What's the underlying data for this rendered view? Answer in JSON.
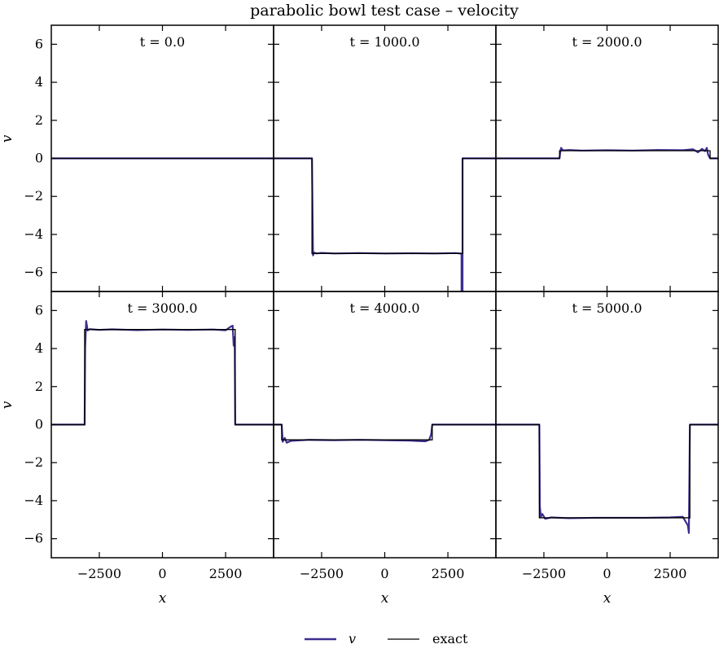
{
  "chart_data": {
    "type": "line",
    "title": "parabolic bowl test case – velocity",
    "xlabel": "x",
    "ylabel": "v",
    "xlim": [
      -4400,
      4400
    ],
    "ylim": [
      -7,
      7
    ],
    "xticks": [
      -2500,
      0,
      2500
    ],
    "xtick_labels": [
      "−2500",
      "0",
      "2500"
    ],
    "yticks": [
      -6,
      -4,
      -2,
      0,
      2,
      4,
      6
    ],
    "ytick_labels": [
      "−6",
      "−4",
      "−2",
      "0",
      "2",
      "4",
      "6"
    ],
    "legend": {
      "position": "bottom-center",
      "entries": [
        {
          "label": "v",
          "color": "#3a2e8f",
          "width": 2.2
        },
        {
          "label": "exact",
          "color": "#000000",
          "width": 1.3
        }
      ]
    },
    "panels": [
      {
        "label": "t = 0.0",
        "exact": {
          "x": [
            -4400,
            4400
          ],
          "y": [
            0,
            0
          ]
        },
        "v": {
          "x": [
            -4400,
            4400
          ],
          "y": [
            0,
            0
          ]
        }
      },
      {
        "label": "t = 1000.0",
        "exact": {
          "x": [
            -4400,
            -2880,
            -2880,
            3080,
            3080,
            4400
          ],
          "y": [
            0,
            0,
            -5,
            -5,
            0,
            0
          ]
        },
        "v": {
          "x": [
            -4400,
            -2880,
            -2840,
            -2800,
            -2700,
            -2500,
            -2000,
            -1000,
            0,
            1000,
            2000,
            2800,
            3000,
            3040,
            3040,
            3080,
            3080,
            4400
          ],
          "y": [
            0,
            0,
            -5.1,
            -4.95,
            -5.0,
            -4.97,
            -5.0,
            -4.98,
            -5.0,
            -4.99,
            -5.0,
            -4.98,
            -5.0,
            -5.05,
            -7.2,
            -7.2,
            0,
            0
          ]
        }
      },
      {
        "label": "t = 2000.0",
        "exact": {
          "x": [
            -4400,
            -1880,
            -1880,
            4080,
            4080,
            4400
          ],
          "y": [
            0,
            0,
            0.4,
            0.4,
            0,
            0
          ]
        },
        "v": {
          "x": [
            -4400,
            -1880,
            -1860,
            -1820,
            -1740,
            -1500,
            -1000,
            0,
            1000,
            2000,
            3000,
            3400,
            3600,
            3760,
            3880,
            3950,
            4000,
            4080,
            4400
          ],
          "y": [
            0,
            0,
            0.25,
            0.55,
            0.42,
            0.44,
            0.41,
            0.43,
            0.41,
            0.44,
            0.43,
            0.48,
            0.32,
            0.5,
            0.38,
            0.55,
            0.2,
            0,
            0
          ]
        }
      },
      {
        "label": "t = 3000.0",
        "exact": {
          "x": [
            -4400,
            -3080,
            -3080,
            2880,
            2880,
            4400
          ],
          "y": [
            0,
            0,
            5,
            5,
            0,
            0
          ]
        },
        "v": {
          "x": [
            -4400,
            -3080,
            -3060,
            -3020,
            -2960,
            -2880,
            -2500,
            -2000,
            -1000,
            0,
            1000,
            2000,
            2500,
            2700,
            2780,
            2820,
            2860,
            2880,
            4400
          ],
          "y": [
            0,
            0,
            4.0,
            5.45,
            4.95,
            5.02,
            4.98,
            5.01,
            4.97,
            5.0,
            4.98,
            5.0,
            4.96,
            5.15,
            5.2,
            4.15,
            4.6,
            0,
            0
          ]
        }
      },
      {
        "label": "t = 4000.0",
        "exact": {
          "x": [
            -4400,
            -4080,
            -4080,
            1880,
            1880,
            4400
          ],
          "y": [
            0,
            0,
            -0.8,
            -0.8,
            0,
            0
          ]
        },
        "v": {
          "x": [
            -4400,
            -4080,
            -4040,
            -3960,
            -3880,
            -3700,
            -3000,
            -2000,
            -1000,
            0,
            1000,
            1600,
            1760,
            1840,
            1880,
            4400
          ],
          "y": [
            0,
            0,
            -0.9,
            -0.7,
            -0.95,
            -0.85,
            -0.8,
            -0.82,
            -0.8,
            -0.82,
            -0.84,
            -0.88,
            -0.8,
            -0.5,
            0,
            0
          ]
        }
      },
      {
        "label": "t = 5000.0",
        "exact": {
          "x": [
            -4400,
            -2680,
            -2680,
            3280,
            3280,
            4400
          ],
          "y": [
            0,
            0,
            -4.9,
            -4.9,
            0,
            0
          ]
        },
        "v": {
          "x": [
            -4400,
            -2680,
            -2660,
            -2620,
            -2560,
            -2450,
            -2200,
            -1500,
            -500,
            500,
            1500,
            2500,
            3000,
            3200,
            3240,
            3280,
            4400
          ],
          "y": [
            0,
            0,
            -4.3,
            -4.85,
            -4.7,
            -4.95,
            -4.88,
            -4.92,
            -4.9,
            -4.9,
            -4.9,
            -4.88,
            -4.85,
            -5.3,
            -5.7,
            0,
            0
          ]
        }
      }
    ]
  }
}
